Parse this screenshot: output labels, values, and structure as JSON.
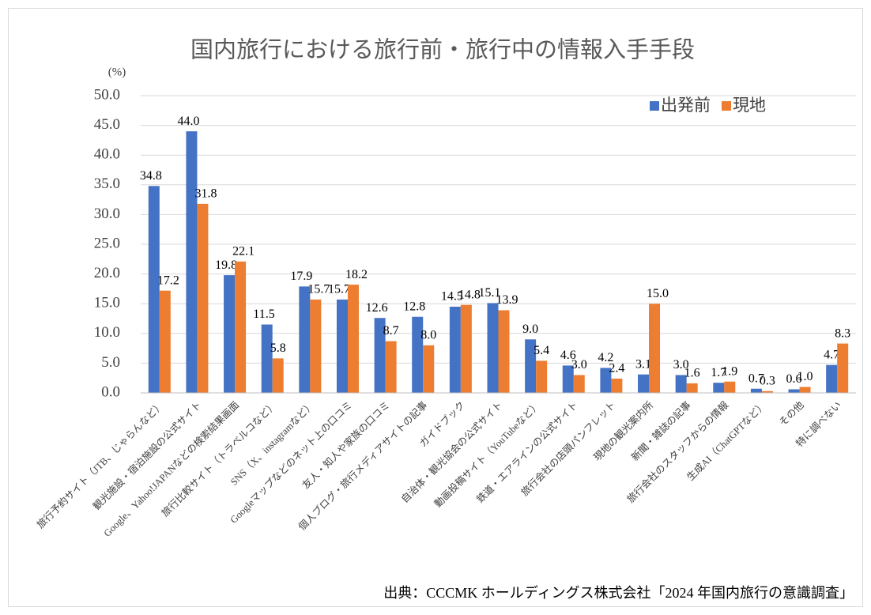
{
  "chart_data": {
    "type": "bar",
    "title": "国内旅行における旅行前・旅行中の情報入手手段",
    "y_unit": "(%)",
    "source": "出典：CCCMK ホールディングス株式会社「2024 年国内旅行の意識調査」",
    "categories": [
      "旅行予約サイト（JTB、じゃらんなど）",
      "観光施設・宿泊施設の公式サイト",
      "Google、Yahoo!JAPANなどの検索結果画面",
      "旅行比較サイト（トラベルコなど）",
      "SNS（X、instagramなど）",
      "Googleマップなどのネット上の口コミ",
      "友人・知人や家族の口コミ",
      "個人ブログ・旅行メディアサイトの記事",
      "ガイドブック",
      "自治体・観光協会の公式サイト",
      "動画投稿サイト（YouTubeなど）",
      "鉄道・エアラインの公式サイト",
      "旅行会社の店頭パンフレット",
      "現地の観光案内所",
      "新聞・雑誌の記事",
      "旅行会社のスタッフからの情報",
      "生成AI（ChatGPTなど）",
      "その他",
      "特に調べない"
    ],
    "series": [
      {
        "name": "出発前",
        "color": "#4472c4",
        "values": [
          34.8,
          44.0,
          19.8,
          11.5,
          17.9,
          15.7,
          12.6,
          12.8,
          14.5,
          15.1,
          9.0,
          4.6,
          4.2,
          3.1,
          3.0,
          1.7,
          0.7,
          0.6,
          4.7
        ],
        "value_labels": [
          "34.8",
          "44.0",
          "19.8",
          "11.5",
          "17.9",
          "15.7",
          "12.6",
          "12.8",
          "14.5",
          "15.1",
          "9.0",
          "4.6",
          "4.2",
          "3.1",
          "3.0",
          "1.7",
          "0.7",
          "0.6",
          "4.7"
        ]
      },
      {
        "name": "現地",
        "color": "#ed7d31",
        "values": [
          17.2,
          31.8,
          22.1,
          5.8,
          15.7,
          18.2,
          8.7,
          8.0,
          14.8,
          13.9,
          5.4,
          3.0,
          2.4,
          15.0,
          1.6,
          1.9,
          0.3,
          1.0,
          8.3
        ],
        "value_labels": [
          "17.2",
          "31.8",
          "22.1",
          "5.8",
          "15.7",
          "18.2",
          "8.7",
          "8.0",
          "14.8",
          "13.9",
          "5.4",
          "3.0",
          "2.4",
          "15.0",
          "1.6",
          "1.9",
          "0.3",
          "1.0",
          "8.3"
        ]
      }
    ],
    "ylim": [
      0,
      50
    ],
    "yticks": [
      {
        "value": 0,
        "label": "0.0"
      },
      {
        "value": 5,
        "label": "5.0"
      },
      {
        "value": 10,
        "label": "10.0"
      },
      {
        "value": 15,
        "label": "15.0"
      },
      {
        "value": 20,
        "label": "20.0"
      },
      {
        "value": 25,
        "label": "25.0"
      },
      {
        "value": 30,
        "label": "30.0"
      },
      {
        "value": 35,
        "label": "35.0"
      },
      {
        "value": 40,
        "label": "40.0"
      },
      {
        "value": 45,
        "label": "45.0"
      },
      {
        "value": 50,
        "label": "50.0"
      }
    ],
    "grid": true,
    "legend": "top-right"
  }
}
